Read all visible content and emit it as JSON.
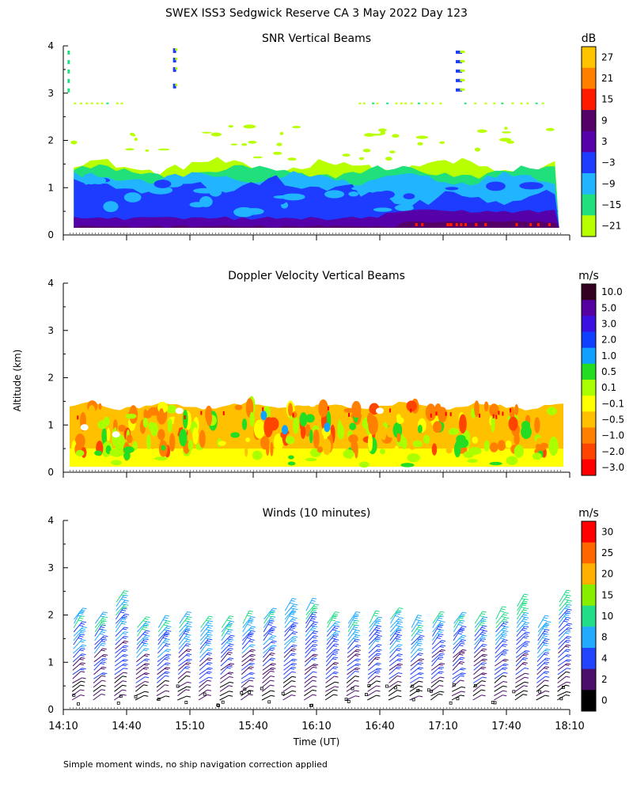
{
  "title": "SWEX ISS3 Sedgwick Reserve CA   3 May 2022 Day 123",
  "ylabel": "Altitude (km)",
  "xlabel": "Time (UT)",
  "footnote": "Simple moment winds, no ship navigation correction applied",
  "x_ticks": [
    "14:10",
    "14:40",
    "15:10",
    "15:40",
    "16:10",
    "16:40",
    "17:10",
    "17:40",
    "18:10"
  ],
  "chart_data": [
    {
      "type": "heatmap",
      "title": "SNR Vertical Beams",
      "unit": "dB",
      "ylim": [
        0,
        4
      ],
      "y_ticks": [
        "0",
        "1",
        "2",
        "3",
        "4"
      ],
      "xlim": [
        "14:10",
        "18:10"
      ],
      "colorbar": {
        "labels": [
          "27",
          "21",
          "15",
          "9",
          "3",
          "−3",
          "−9",
          "−15",
          "−21"
        ],
        "colors": [
          "#ffc400",
          "#ff7f00",
          "#ff1a00",
          "#550066",
          "#5500a8",
          "#1d3cff",
          "#21b4ff",
          "#1fe07a",
          "#b8ff00"
        ]
      },
      "description": "Echo layer from surface to ~1.4 km; strongest (purple/red) near 0.2-0.4 km after 16:40; sparse returns near 2.8 km and 3.0-4.0 km"
    },
    {
      "type": "heatmap",
      "title": "Doppler Velocity Vertical Beams",
      "unit": "m/s",
      "ylim": [
        0,
        4
      ],
      "y_ticks": [
        "0",
        "1",
        "2",
        "3",
        "4"
      ],
      "xlim": [
        "14:10",
        "18:10"
      ],
      "colorbar": {
        "labels": [
          "10.0",
          "5.0",
          "3.0",
          "2.0",
          "1.0",
          "0.5",
          "0.1",
          "−0.1",
          "−0.5",
          "−1.0",
          "−2.0",
          "−3.0"
        ],
        "colors": [
          "#330022",
          "#5500a0",
          "#3a10e0",
          "#1040ff",
          "#10a0ff",
          "#22dd22",
          "#aaff00",
          "#ffff00",
          "#ffc000",
          "#ff8000",
          "#ff4400",
          "#ff0000"
        ]
      },
      "description": "Layer 0.1-1.45 km; mostly -0.1 to -1.0 m/s (yellow/orange) with patches of +0.1 to +1.0 m/s"
    },
    {
      "type": "wind-barbs",
      "title": "Winds (10 minutes)",
      "unit": "m/s",
      "ylim": [
        0,
        4
      ],
      "y_ticks": [
        "0",
        "1",
        "2",
        "3",
        "4"
      ],
      "xlim": [
        "14:10",
        "18:10"
      ],
      "profile_times_min": [
        10,
        20,
        30,
        40,
        50,
        60,
        70,
        80,
        90,
        100,
        110,
        120,
        130,
        140,
        150,
        160,
        170,
        180,
        190,
        200,
        210,
        220,
        230,
        240
      ],
      "top_heights_km": [
        1.95,
        1.85,
        2.35,
        1.8,
        1.75,
        1.9,
        1.75,
        1.75,
        1.85,
        1.95,
        2.1,
        2.15,
        1.85,
        1.9,
        1.85,
        1.95,
        1.8,
        1.85,
        1.85,
        1.85,
        1.95,
        2.2,
        1.8,
        2.35
      ],
      "colorbar": {
        "labels": [
          "30",
          "25",
          "20",
          "15",
          "10",
          "8",
          "4",
          "2",
          "0"
        ],
        "colors": [
          "#ff0000",
          "#ff6600",
          "#ffb000",
          "#88ee00",
          "#22dd88",
          "#22aaff",
          "#2244ff",
          "#4a0f6a",
          "#000000"
        ]
      },
      "description": "Wind barbs from ~0.2 km to ~1.9-2.4 km every 10 min; mostly 4-8 m/s below 1.2 km, 10-20 m/s near the top"
    }
  ]
}
